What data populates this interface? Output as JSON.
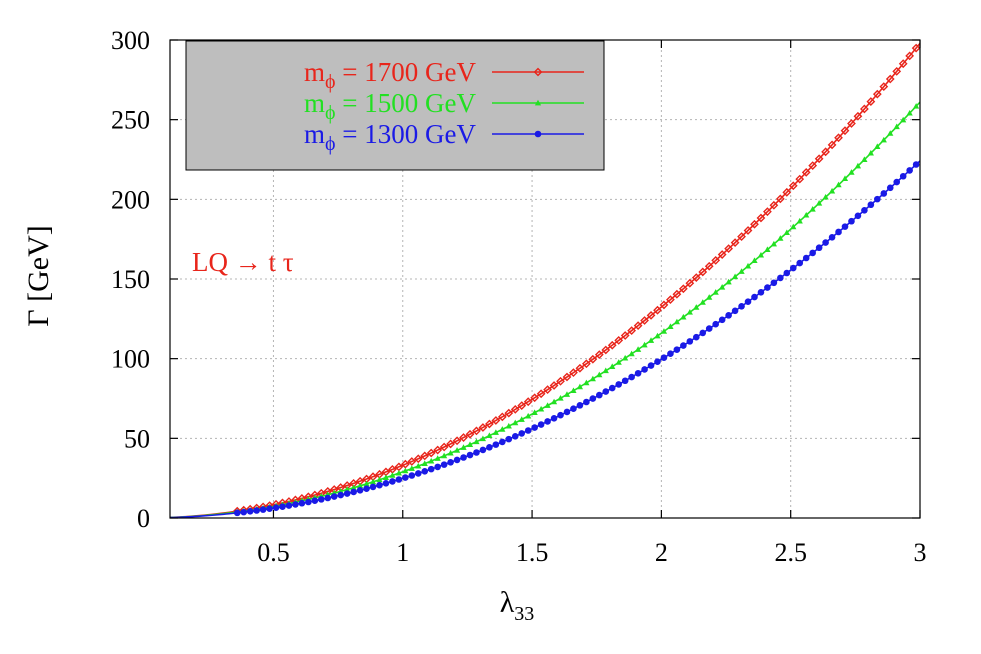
{
  "chart_data": {
    "type": "line",
    "title": "",
    "xlabel": "λ",
    "xlabel_sub": "33",
    "ylabel": "Γ [GeV]",
    "xlim": [
      0.1,
      3
    ],
    "ylim": [
      0,
      300
    ],
    "x_ticks": [
      "0.5",
      "1",
      "1.5",
      "2",
      "2.5",
      "3"
    ],
    "y_ticks": [
      "0",
      "50",
      "100",
      "150",
      "200",
      "250",
      "300"
    ],
    "grid": true,
    "legend_position": "top-left",
    "legend_background": "#bebebe",
    "annotation": "LQ → t τ",
    "annotation_color": "#e8251b",
    "series": [
      {
        "label_main": "m",
        "label_sub": "ϕ",
        "label_rest": " = 1700 GeV",
        "color": "#e8251b",
        "marker": "diamond",
        "coefficient": 33.1,
        "exponent": 2,
        "x": [
          0.1,
          0.5,
          1,
          1.5,
          2,
          2.5,
          3
        ],
        "y": [
          0.3,
          8.3,
          33.1,
          74.5,
          132.4,
          206.9,
          297.9
        ]
      },
      {
        "label_main": "m",
        "label_sub": "ϕ",
        "label_rest": " = 1500 GeV",
        "color": "#22e022",
        "marker": "triangle",
        "coefficient": 29.0,
        "exponent": 2,
        "x": [
          0.1,
          0.5,
          1,
          1.5,
          2,
          2.5,
          3
        ],
        "y": [
          0.3,
          7.3,
          29.0,
          65.3,
          116.0,
          181.3,
          261.0
        ]
      },
      {
        "label_main": "m",
        "label_sub": "ϕ",
        "label_rest": " = 1300 GeV",
        "color": "#1a1ae6",
        "marker": "circle",
        "coefficient": 24.9,
        "exponent": 2,
        "x": [
          0.1,
          0.5,
          1,
          1.5,
          2,
          2.5,
          3
        ],
        "y": [
          0.2,
          6.2,
          24.9,
          56.0,
          99.6,
          155.6,
          224.1
        ]
      }
    ]
  }
}
